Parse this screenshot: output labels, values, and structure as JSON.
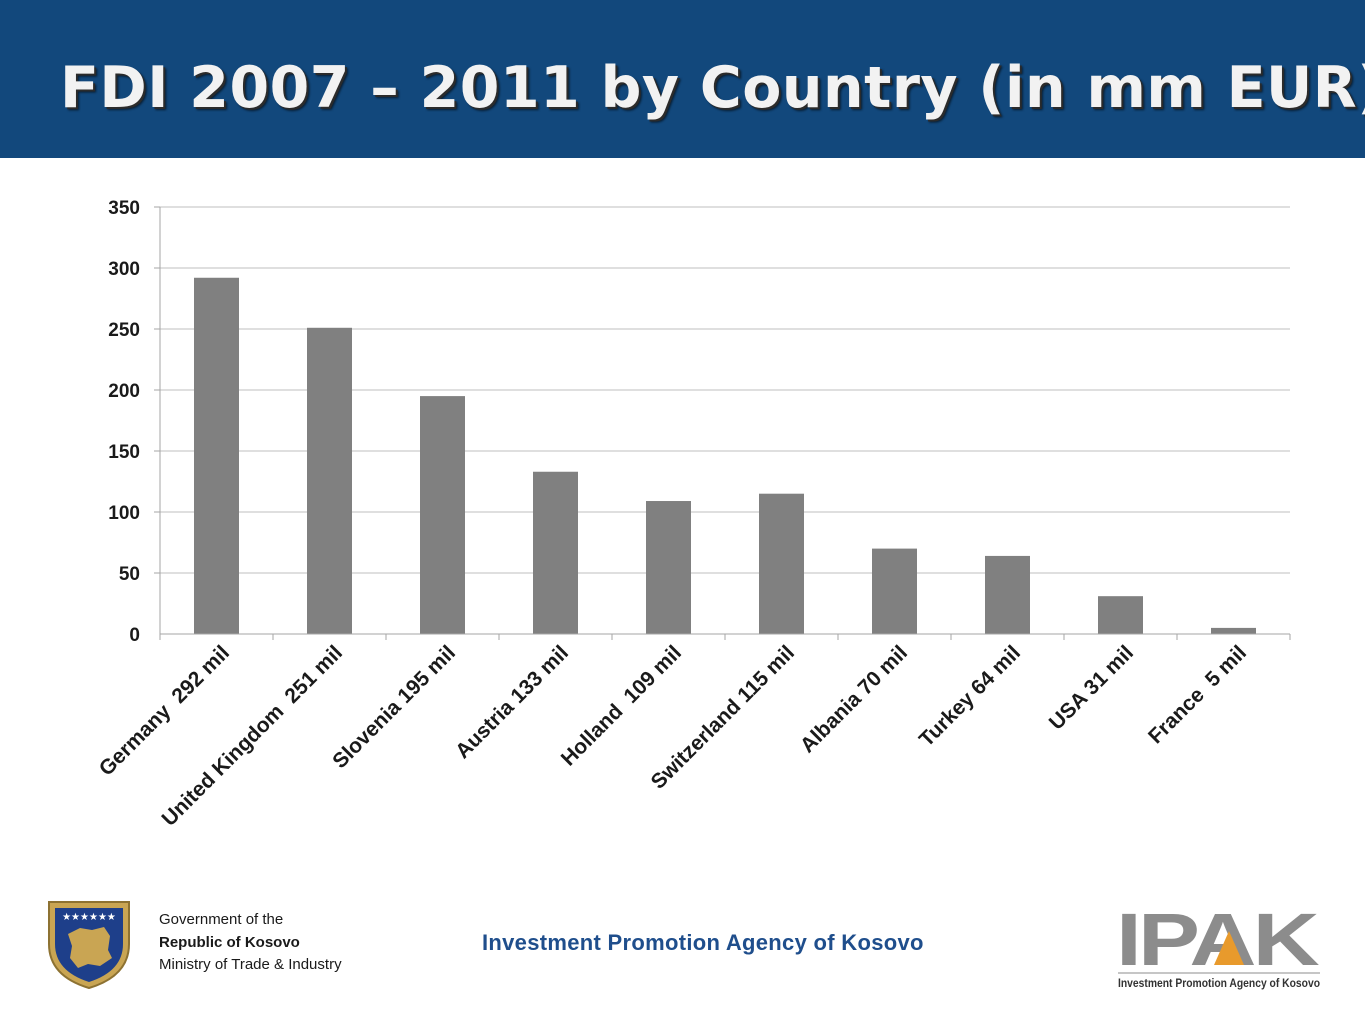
{
  "header": {
    "title": "FDI 2007 – 2011 by Country (in mm EUR)"
  },
  "chart_data": {
    "type": "bar",
    "title": "",
    "xlabel": "",
    "ylabel": "",
    "categories": [
      "Germany  292 mil",
      "United Kingdom  251 mil",
      "Slovenia 195 mil",
      "Austria 133 mil",
      "Holland  109 mil",
      "Switzerland 115 mil",
      "Albania 70 mil",
      "Turkey 64 mil",
      "USA 31 mil",
      "France  5 mil"
    ],
    "values": [
      292,
      251,
      195,
      133,
      109,
      115,
      70,
      64,
      31,
      5
    ],
    "ylim": [
      0,
      350
    ],
    "yticks": [
      0,
      50,
      100,
      150,
      200,
      250,
      300,
      350
    ],
    "grid": true,
    "legend": "none",
    "colors": {
      "bar": "#808080",
      "grid": "#bfbfbf",
      "axis": "#a6a6a6"
    }
  },
  "footer": {
    "gov_line1": "Government of the",
    "gov_line2": "Republic of Kosovo",
    "gov_line3": "Ministry of Trade & Industry",
    "agency": "Investment Promotion Agency of Kosovo",
    "logo_text": "IPAK",
    "logo_subtext": "Investment Promotion Agency of Kosovo",
    "emblem_icon": "kosovo-coat-of-arms-icon"
  },
  "theme": {
    "header_bg": "#12487c",
    "agency_color": "#1f4e8c",
    "logo_gray": "#8c8c8c",
    "logo_accent": "#e89a2c"
  }
}
